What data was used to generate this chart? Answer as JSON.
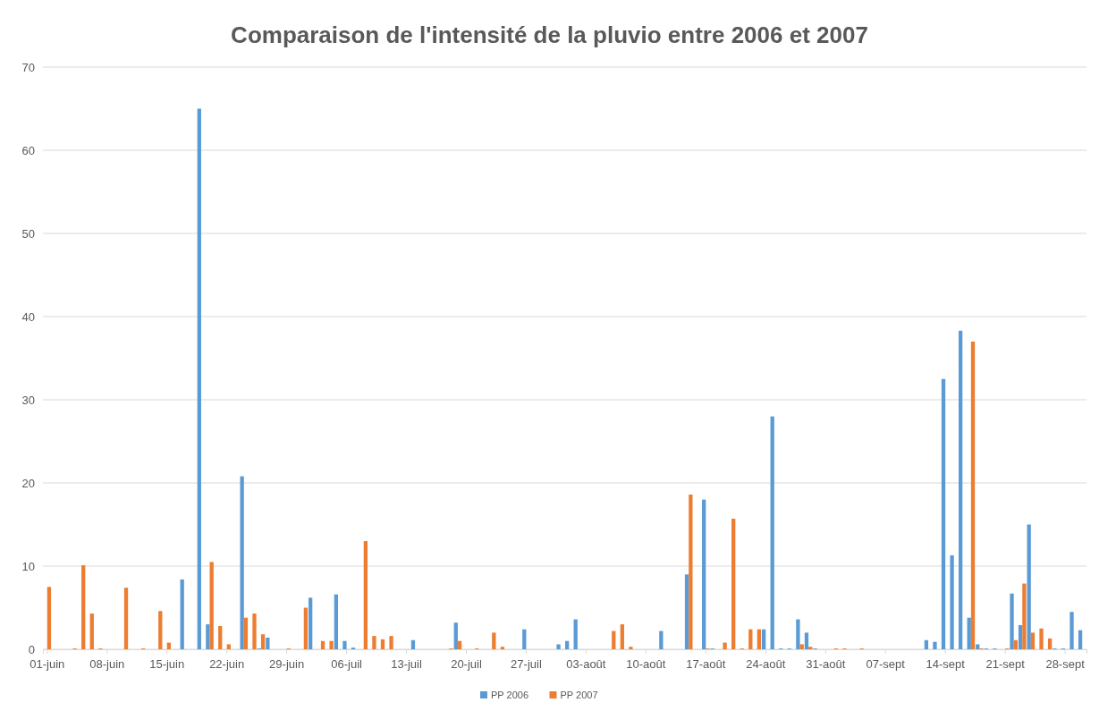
{
  "chart_data": {
    "type": "bar",
    "title": "Comparaison de l'intensité de la pluvio entre 2006 et 2007",
    "categories": [
      "01-juin",
      null,
      null,
      null,
      null,
      null,
      null,
      "08-juin",
      null,
      null,
      null,
      null,
      null,
      null,
      "15-juin",
      null,
      null,
      null,
      null,
      null,
      null,
      "22-juin",
      null,
      null,
      null,
      null,
      null,
      null,
      "29-juin",
      null,
      null,
      null,
      null,
      null,
      null,
      "06-juil",
      null,
      null,
      null,
      null,
      null,
      null,
      "13-juil",
      null,
      null,
      null,
      null,
      null,
      null,
      "20-juil",
      null,
      null,
      null,
      null,
      null,
      null,
      "27-juil",
      null,
      null,
      null,
      null,
      null,
      null,
      "03-août",
      null,
      null,
      null,
      null,
      null,
      null,
      "10-août",
      null,
      null,
      null,
      null,
      null,
      null,
      "17-août",
      null,
      null,
      null,
      null,
      null,
      null,
      "24-août",
      null,
      null,
      null,
      null,
      null,
      null,
      "31-août",
      null,
      null,
      null,
      null,
      null,
      null,
      "07-sept",
      null,
      null,
      null,
      null,
      null,
      null,
      "14-sept",
      null,
      null,
      null,
      null,
      null,
      null,
      "21-sept",
      null,
      null,
      null,
      null,
      null,
      null,
      "28-sept",
      null,
      null
    ],
    "series": [
      {
        "name": "PP 2006",
        "color": "#5b9bd5",
        "values": [
          0,
          0,
          0,
          0,
          0,
          0,
          0,
          0,
          0,
          0,
          0,
          0,
          0,
          0,
          0,
          0,
          8.4,
          0,
          65,
          3.0,
          0,
          0,
          0,
          20.8,
          0,
          0.1,
          1.4,
          0,
          0,
          0,
          0,
          6.2,
          0,
          0,
          6.6,
          1.0,
          0.2,
          0,
          0,
          0,
          0,
          0,
          0,
          1.1,
          0,
          0,
          0,
          0,
          3.2,
          0,
          0,
          0,
          0,
          0,
          0,
          0,
          2.4,
          0,
          0,
          0,
          0.6,
          1.0,
          3.6,
          0,
          0,
          0,
          0,
          0,
          0,
          0,
          0,
          0,
          2.2,
          0,
          0,
          9.0,
          0,
          18.0,
          0.1,
          0,
          0,
          0,
          0,
          0,
          2.4,
          28.0,
          0.1,
          0.1,
          3.6,
          2.0,
          0.1,
          0,
          0,
          0,
          0,
          0,
          0,
          0,
          0,
          0,
          0,
          0,
          0,
          1.1,
          0.9,
          32.5,
          11.3,
          38.3,
          3.8,
          0.6,
          0.1,
          0.1,
          0,
          6.7,
          2.9,
          15.0,
          0,
          0,
          0.1,
          0.1,
          4.5,
          2.3
        ]
      },
      {
        "name": "PP 2007",
        "color": "#ed7d31",
        "values": [
          7.5,
          0,
          0,
          0.1,
          10.1,
          4.3,
          0.1,
          0,
          0,
          7.4,
          0,
          0.1,
          0,
          4.6,
          0.8,
          0,
          0,
          0,
          0,
          10.5,
          2.8,
          0.6,
          0,
          3.8,
          4.3,
          1.8,
          0,
          0,
          0.1,
          0,
          5.0,
          0,
          1.0,
          1.0,
          0,
          0,
          0,
          13.0,
          1.6,
          1.2,
          1.6,
          0,
          0,
          0,
          0,
          0,
          0,
          0.1,
          1.0,
          0,
          0.1,
          0,
          2.0,
          0.3,
          0,
          0,
          0,
          0,
          0,
          0,
          0,
          0,
          0,
          0,
          0,
          0,
          2.2,
          3.0,
          0.3,
          0,
          0,
          0,
          0,
          0,
          0,
          18.6,
          0,
          0.1,
          0,
          0.8,
          15.7,
          0.1,
          2.4,
          2.4,
          0,
          0,
          0,
          0,
          0.6,
          0.3,
          0,
          0,
          0.1,
          0.1,
          0,
          0.1,
          0,
          0,
          0,
          0,
          0,
          0,
          0,
          0,
          0,
          0,
          0,
          0,
          37.0,
          0.1,
          0,
          0,
          0.1,
          1.1,
          7.9,
          2.0,
          2.5,
          1.3,
          0,
          0,
          0,
          0
        ]
      }
    ],
    "ylim": [
      0,
      70
    ],
    "yticks": [
      0,
      10,
      20,
      30,
      40,
      50,
      60,
      70
    ],
    "grid": "y",
    "legend": "bottom"
  }
}
